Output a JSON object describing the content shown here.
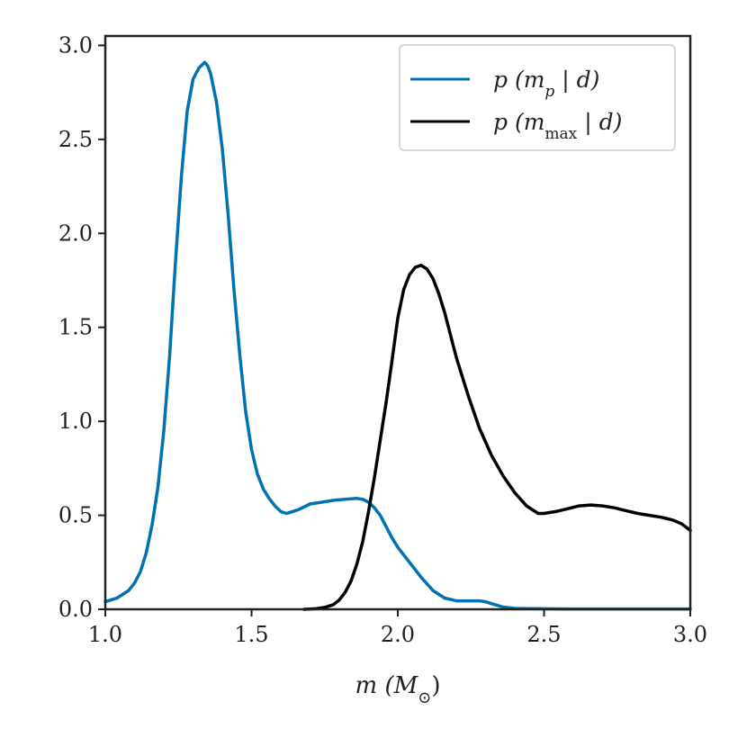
{
  "chart_data": {
    "type": "line",
    "title": "",
    "xlabel": "m (M⊙)",
    "ylabel": "",
    "xlim": [
      1.0,
      3.0
    ],
    "ylim": [
      0.0,
      3.05
    ],
    "x_ticks": [
      "1.0",
      "1.5",
      "2.0",
      "2.5",
      "3.0"
    ],
    "y_ticks": [
      "0.0",
      "0.5",
      "1.0",
      "1.5",
      "2.0",
      "2.5",
      "3.0"
    ],
    "legend_position": "top-right",
    "grid": false,
    "series": [
      {
        "name": "p (m_p | d)",
        "color": "#0072b2",
        "x": [
          1.0,
          1.04,
          1.08,
          1.1,
          1.12,
          1.14,
          1.16,
          1.18,
          1.2,
          1.22,
          1.24,
          1.26,
          1.28,
          1.3,
          1.32,
          1.34,
          1.35,
          1.36,
          1.38,
          1.4,
          1.42,
          1.44,
          1.46,
          1.48,
          1.5,
          1.52,
          1.54,
          1.56,
          1.58,
          1.6,
          1.62,
          1.64,
          1.66,
          1.7,
          1.74,
          1.78,
          1.82,
          1.86,
          1.88,
          1.9,
          1.92,
          1.94,
          1.96,
          1.98,
          2.0,
          2.04,
          2.08,
          2.12,
          2.16,
          2.2,
          2.24,
          2.28,
          2.3,
          2.32,
          2.36,
          2.4,
          2.5,
          2.6,
          2.8,
          3.0
        ],
        "y": [
          0.04,
          0.06,
          0.1,
          0.14,
          0.2,
          0.3,
          0.45,
          0.65,
          0.95,
          1.35,
          1.85,
          2.3,
          2.65,
          2.82,
          2.88,
          2.91,
          2.89,
          2.85,
          2.7,
          2.45,
          2.1,
          1.7,
          1.35,
          1.05,
          0.85,
          0.72,
          0.64,
          0.59,
          0.55,
          0.52,
          0.51,
          0.52,
          0.53,
          0.56,
          0.57,
          0.58,
          0.585,
          0.59,
          0.585,
          0.57,
          0.54,
          0.5,
          0.44,
          0.38,
          0.33,
          0.25,
          0.17,
          0.1,
          0.06,
          0.045,
          0.045,
          0.045,
          0.04,
          0.03,
          0.012,
          0.005,
          0.003,
          0.002,
          0.002,
          0.002
        ]
      },
      {
        "name": "p (m_max | d)",
        "color": "#000000",
        "x": [
          1.68,
          1.72,
          1.75,
          1.78,
          1.8,
          1.82,
          1.84,
          1.86,
          1.88,
          1.9,
          1.92,
          1.94,
          1.96,
          1.98,
          2.0,
          2.02,
          2.04,
          2.06,
          2.08,
          2.1,
          2.12,
          2.14,
          2.16,
          2.18,
          2.2,
          2.24,
          2.28,
          2.32,
          2.36,
          2.4,
          2.44,
          2.48,
          2.5,
          2.54,
          2.58,
          2.62,
          2.66,
          2.7,
          2.74,
          2.78,
          2.82,
          2.86,
          2.9,
          2.94,
          2.97,
          3.0
        ],
        "y": [
          0.0,
          0.003,
          0.01,
          0.025,
          0.05,
          0.09,
          0.15,
          0.24,
          0.36,
          0.52,
          0.7,
          0.9,
          1.1,
          1.32,
          1.55,
          1.7,
          1.78,
          1.82,
          1.83,
          1.81,
          1.76,
          1.68,
          1.58,
          1.46,
          1.34,
          1.14,
          0.96,
          0.82,
          0.71,
          0.62,
          0.55,
          0.51,
          0.51,
          0.52,
          0.535,
          0.55,
          0.555,
          0.55,
          0.54,
          0.525,
          0.51,
          0.5,
          0.49,
          0.475,
          0.455,
          0.42
        ]
      }
    ]
  },
  "legend": [
    {
      "prefix": "p (m",
      "sub": "p",
      "suffix": " | d)",
      "color": "#0072b2"
    },
    {
      "prefix": "p (m",
      "sub": "max",
      "suffix": " | d)",
      "color": "#000000"
    }
  ],
  "axis": {
    "xlabel_main": "m (M",
    "xlabel_sub": "⊙",
    "xlabel_close": ")"
  }
}
